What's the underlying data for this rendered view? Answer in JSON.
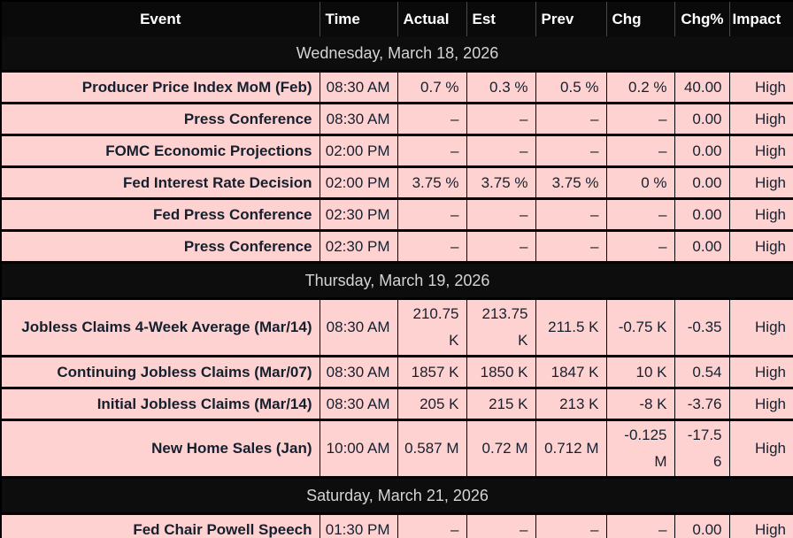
{
  "colors": {
    "header_bg": "#0a0a0a",
    "header_text": "#ffffff",
    "date_row_bg": "#0d0d0d",
    "date_row_text": "#d6d4d4",
    "event_row_bg": "#ffd2d2",
    "event_row_text": "#15202e",
    "grid": "#000000"
  },
  "table": {
    "columns": [
      {
        "key": "event",
        "label": "Event"
      },
      {
        "key": "time",
        "label": "Time"
      },
      {
        "key": "actual",
        "label": "Actual"
      },
      {
        "key": "est",
        "label": "Est"
      },
      {
        "key": "prev",
        "label": "Prev"
      },
      {
        "key": "chg",
        "label": "Chg"
      },
      {
        "key": "chgpct",
        "label": "Chg%"
      },
      {
        "key": "impact",
        "label": "Impact"
      }
    ],
    "sections": [
      {
        "date": "Wednesday, March 18, 2026",
        "rows": [
          {
            "event": "Producer Price Index MoM (Feb)",
            "time": "08:30 AM",
            "actual": "0.7 %",
            "est": "0.3 %",
            "prev": "0.5 %",
            "chg": "0.2 %",
            "chgpct": "40.00",
            "impact": "High"
          },
          {
            "event": "Press Conference",
            "time": "08:30 AM",
            "actual": "–",
            "est": "–",
            "prev": "–",
            "chg": "–",
            "chgpct": "0.00",
            "impact": "High"
          },
          {
            "event": "FOMC Economic Projections",
            "time": "02:00 PM",
            "actual": "–",
            "est": "–",
            "prev": "–",
            "chg": "–",
            "chgpct": "0.00",
            "impact": "High"
          },
          {
            "event": "Fed Interest Rate Decision",
            "time": "02:00 PM",
            "actual": "3.75 %",
            "est": "3.75 %",
            "prev": "3.75 %",
            "chg": "0 %",
            "chgpct": "0.00",
            "impact": "High"
          },
          {
            "event": "Fed Press Conference",
            "time": "02:30 PM",
            "actual": "–",
            "est": "–",
            "prev": "–",
            "chg": "–",
            "chgpct": "0.00",
            "impact": "High"
          },
          {
            "event": "Press Conference",
            "time": "02:30 PM",
            "actual": "–",
            "est": "–",
            "prev": "–",
            "chg": "–",
            "chgpct": "0.00",
            "impact": "High"
          }
        ]
      },
      {
        "date": "Thursday, March 19, 2026",
        "rows": [
          {
            "event": "Jobless Claims 4-Week Average (Mar/14)",
            "time": "08:30 AM",
            "actual": "210.75 K",
            "est": "213.75 K",
            "prev": "211.5 K",
            "chg": "-0.75 K",
            "chgpct": "-0.35",
            "impact": "High"
          },
          {
            "event": "Continuing Jobless Claims (Mar/07)",
            "time": "08:30 AM",
            "actual": "1857 K",
            "est": "1850 K",
            "prev": "1847 K",
            "chg": "10 K",
            "chgpct": "0.54",
            "impact": "High"
          },
          {
            "event": "Initial Jobless Claims (Mar/14)",
            "time": "08:30 AM",
            "actual": "205 K",
            "est": "215 K",
            "prev": "213 K",
            "chg": "-8 K",
            "chgpct": "-3.76",
            "impact": "High"
          },
          {
            "event": "New Home Sales (Jan)",
            "time": "10:00 AM",
            "actual": "0.587 M",
            "est": "0.72 M",
            "prev": "0.712 M",
            "chg": "-0.125 M",
            "chgpct": "-17.56",
            "impact": "High"
          }
        ]
      },
      {
        "date": "Saturday, March 21, 2026",
        "rows": [
          {
            "event": "Fed Chair Powell Speech",
            "time": "01:30 PM",
            "actual": "–",
            "est": "–",
            "prev": "–",
            "chg": "–",
            "chgpct": "0.00",
            "impact": "High"
          }
        ]
      }
    ]
  }
}
